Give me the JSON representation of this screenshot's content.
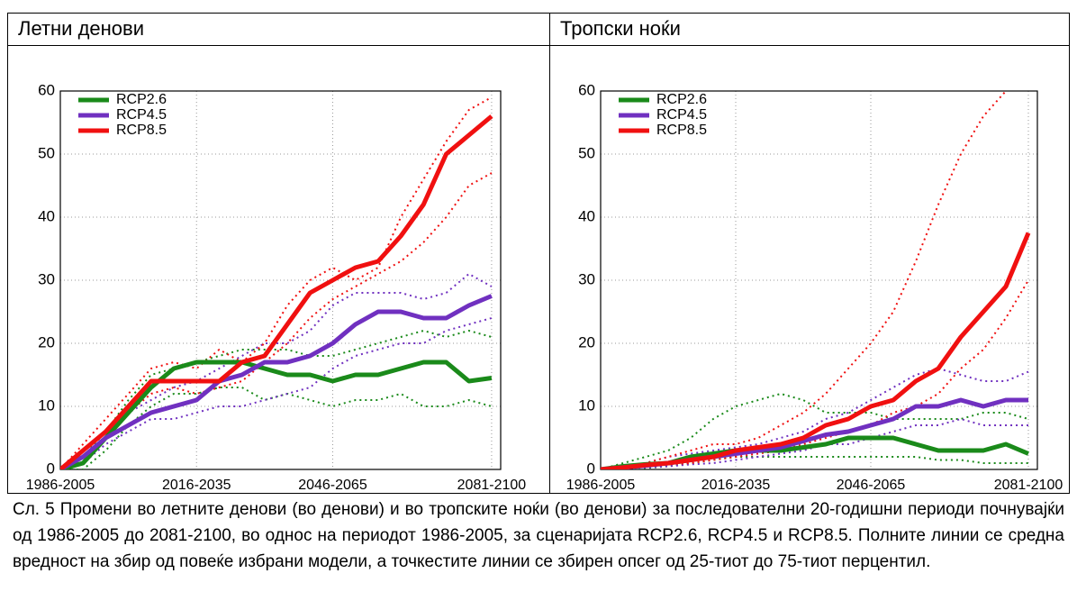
{
  "chart_data": [
    {
      "type": "line",
      "title": "Летни денови",
      "x": [
        1986,
        1991,
        1996,
        2001,
        2006,
        2011,
        2016,
        2021,
        2026,
        2031,
        2036,
        2041,
        2046,
        2051,
        2056,
        2061,
        2066,
        2071,
        2076,
        2081
      ],
      "xlim": [
        1986,
        2083
      ],
      "xticks": [
        {
          "value": 1986,
          "label": "1986-2005"
        },
        {
          "value": 2016,
          "label": "2016-2035"
        },
        {
          "value": 2046,
          "label": "2046-2065"
        },
        {
          "value": 2081,
          "label": "2081-2100"
        }
      ],
      "ylim": [
        0,
        60
      ],
      "yticks": [
        0,
        10,
        20,
        30,
        40,
        50,
        60
      ],
      "grid": true,
      "legend": "upper left",
      "series": [
        {
          "name": "RCP2.6",
          "color": "#1a8a1a",
          "values": [
            0,
            1,
            5,
            9,
            13,
            16,
            17,
            17,
            17,
            16,
            15,
            15,
            14,
            15,
            15,
            16,
            17,
            17,
            14,
            14.5
          ],
          "p25": [
            0,
            0,
            3,
            7,
            10,
            12,
            12,
            13,
            13,
            11,
            12,
            11,
            10,
            11,
            11,
            12,
            10,
            10,
            11,
            10
          ],
          "p75": [
            0,
            2,
            6,
            11,
            15,
            16,
            17,
            18,
            19,
            19,
            19,
            18,
            18,
            19,
            20,
            21,
            22,
            21,
            22,
            21
          ]
        },
        {
          "name": "RCP4.5",
          "color": "#7030c0",
          "values": [
            0,
            2,
            5,
            7,
            9,
            10,
            11,
            14,
            15,
            17,
            17,
            18,
            20,
            23,
            25,
            25,
            24,
            24,
            26,
            27.5
          ],
          "p25": [
            0,
            1,
            4,
            6,
            8,
            8,
            9,
            10,
            10,
            11,
            12,
            13,
            16,
            18,
            19,
            20,
            20,
            22,
            23,
            24
          ],
          "p75": [
            0,
            3,
            6,
            9,
            11,
            13,
            14,
            16,
            18,
            20,
            20,
            22,
            26,
            28,
            28,
            28,
            27,
            28,
            31,
            29
          ]
        },
        {
          "name": "RCP8.5",
          "color": "#f01010",
          "values": [
            0,
            3,
            6,
            10,
            14,
            14,
            14,
            14,
            17,
            18,
            23,
            28,
            30,
            32,
            33,
            37,
            42,
            50,
            53,
            56
          ],
          "p25": [
            0,
            2,
            5,
            9,
            12,
            13,
            12,
            13,
            14,
            17,
            20,
            24,
            27,
            29,
            31,
            33,
            36,
            40,
            45,
            47
          ],
          "p75": [
            0,
            4,
            8,
            12,
            16,
            17,
            16,
            19,
            17,
            20,
            26,
            30,
            32,
            30,
            32,
            40,
            46,
            52,
            57,
            59
          ]
        }
      ]
    },
    {
      "type": "line",
      "title": "Тропски ноќи",
      "x": [
        1986,
        1991,
        1996,
        2001,
        2006,
        2011,
        2016,
        2021,
        2026,
        2031,
        2036,
        2041,
        2046,
        2051,
        2056,
        2061,
        2066,
        2071,
        2076,
        2081
      ],
      "xlim": [
        1986,
        2083
      ],
      "xticks": [
        {
          "value": 1986,
          "label": "1986-2005"
        },
        {
          "value": 2016,
          "label": "2016-2035"
        },
        {
          "value": 2046,
          "label": "2046-2065"
        },
        {
          "value": 2081,
          "label": "2081-2100"
        }
      ],
      "ylim": [
        0,
        60
      ],
      "yticks": [
        0,
        10,
        20,
        30,
        40,
        50,
        60
      ],
      "grid": true,
      "legend": "upper left",
      "series": [
        {
          "name": "RCP2.6",
          "color": "#1a8a1a",
          "values": [
            0,
            0.5,
            0.8,
            1,
            2,
            2.5,
            3,
            3,
            3,
            3.5,
            4,
            5,
            5,
            5,
            4,
            3,
            3,
            3,
            4,
            2.5
          ],
          "p25": [
            0,
            0,
            0.2,
            0.5,
            1,
            1.5,
            2,
            2,
            2,
            2,
            2,
            2,
            2,
            2,
            2,
            1.5,
            1.5,
            1,
            1,
            1
          ],
          "p75": [
            0,
            1,
            2,
            3,
            5,
            8,
            10,
            11,
            12,
            11,
            9,
            9,
            9,
            8,
            8,
            8,
            8,
            9,
            9,
            8
          ]
        },
        {
          "name": "RCP4.5",
          "color": "#7030c0",
          "values": [
            0,
            0.3,
            0.6,
            1,
            1.5,
            2,
            2.5,
            3,
            3.5,
            4.5,
            5.5,
            6,
            7,
            8,
            10,
            10,
            11,
            10,
            11,
            11
          ],
          "p25": [
            0,
            0.1,
            0.3,
            0.5,
            0.8,
            1,
            1.5,
            2,
            2.5,
            3,
            4,
            4,
            5,
            6,
            7,
            7,
            8,
            7,
            7,
            7
          ],
          "p75": [
            0,
            0.5,
            1,
            2,
            2.5,
            3,
            3.5,
            4,
            5,
            6,
            8,
            9,
            11,
            13,
            15,
            16,
            15,
            14,
            14,
            15.5
          ]
        },
        {
          "name": "RCP8.5",
          "color": "#f01010",
          "values": [
            0,
            0.3,
            0.7,
            1,
            1.5,
            2,
            3,
            3.5,
            4,
            5,
            7,
            8,
            10,
            11,
            14,
            16,
            21,
            25,
            29,
            37.5
          ],
          "p25": [
            0,
            0.2,
            0.5,
            0.8,
            1,
            1.5,
            2,
            2.5,
            3,
            4,
            5,
            6,
            7,
            9,
            10,
            12,
            16,
            19,
            24,
            30
          ],
          "p75": [
            0,
            0.5,
            1,
            2,
            3,
            4,
            4,
            5,
            7,
            9,
            12,
            16,
            20,
            25,
            33,
            42,
            50,
            56,
            60,
            63
          ]
        }
      ]
    }
  ],
  "caption": "Сл. 5 Промени во летните денови (во денови) и во тропските ноќи (во денови) за последователни 20-годишни периоди почнувајќи од 1986-2005 до 2081-2100, во однос на периодот 1986-2005, за сценаријата RCP2.6, RCP4.5 и RCP8.5. Полните линии се средна вредност на збир од повеќе избрани модели, а точкестите линии се збирен опсег од 25-тиот до 75-тиот перцентил."
}
